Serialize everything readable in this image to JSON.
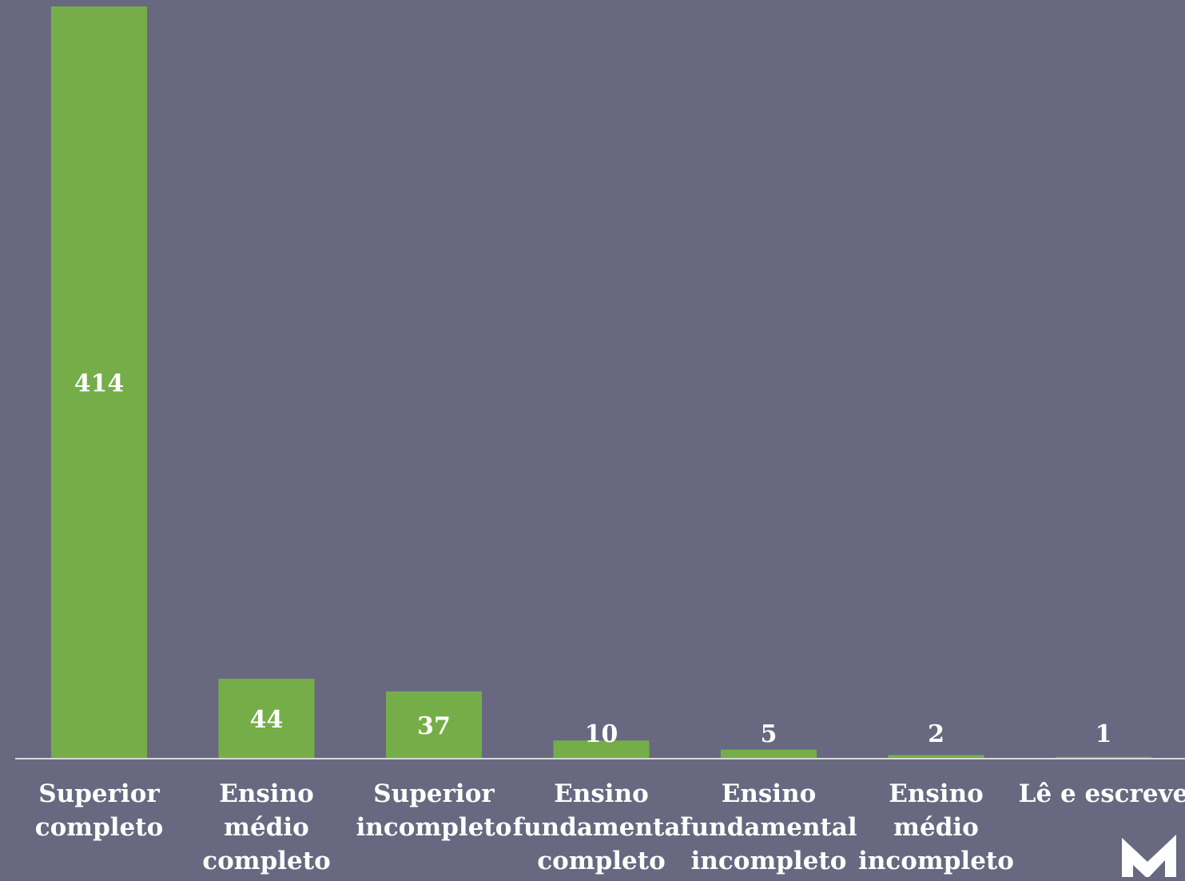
{
  "colors": {
    "background": "#686880",
    "bar": "#75AE48",
    "axis": "#D9D9D9",
    "text": "#FFFFFF",
    "logo": "#FFFFFF"
  },
  "logo": {
    "icon": "m-logo-icon"
  },
  "chart_data": {
    "type": "bar",
    "title": "",
    "xlabel": "",
    "ylabel": "",
    "ylim": [
      0,
      414
    ],
    "grid": false,
    "legend": "none",
    "categories": [
      [
        "Superior",
        "completo"
      ],
      [
        "Ensino",
        "médio",
        "completo"
      ],
      [
        "Superior",
        "incompleto"
      ],
      [
        "Ensino",
        "fundamental",
        "completo"
      ],
      [
        "Ensino",
        "fundamental",
        "incompleto"
      ],
      [
        "Ensino",
        "médio",
        "incompleto"
      ],
      [
        "Lê e escreve"
      ]
    ],
    "values": [
      414,
      44,
      37,
      10,
      5,
      2,
      1
    ],
    "data_labels": [
      "414",
      "44",
      "37",
      "10",
      "5",
      "2",
      "1"
    ]
  }
}
